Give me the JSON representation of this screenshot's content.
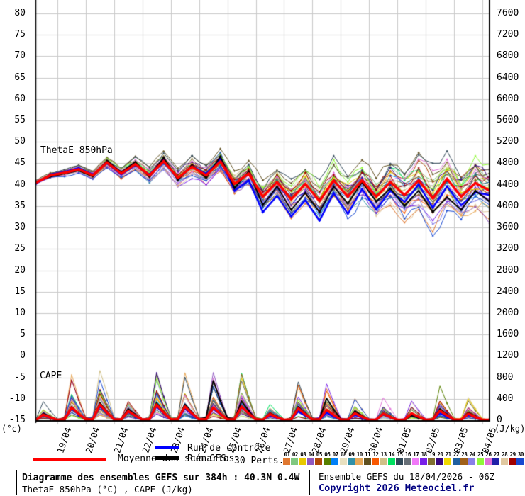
{
  "in_plot": {
    "thetae_label": "ThetaE 850hPa",
    "cape_label": "CAPE"
  },
  "axis_left": {
    "unit": "(°c)",
    "ticks": [
      "80",
      "75",
      "70",
      "65",
      "60",
      "55",
      "50",
      "45",
      "40",
      "35",
      "30",
      "25",
      "20",
      "15",
      "10",
      "5",
      "0",
      "-5",
      "-10",
      "-15"
    ]
  },
  "axis_right": {
    "unit": "(J/kg)",
    "ticks": [
      "7600",
      "7200",
      "6800",
      "6400",
      "6000",
      "5600",
      "5200",
      "4800",
      "4400",
      "4000",
      "3600",
      "3200",
      "2800",
      "2400",
      "2000",
      "1600",
      "1200",
      "800",
      "400",
      "0"
    ]
  },
  "legend": {
    "mean_label": "Moyenne des scénarios",
    "control_label": "Run de contrôle",
    "gfs_label": "Run GFS",
    "perts_label": "30 Perts.",
    "mean_color": "#ff0000",
    "control_color": "#0000ff",
    "gfs_color": "#000000"
  },
  "footer": {
    "title": "Diagramme des ensembles GEFS sur 384h : 40.3N 0.4W",
    "subtitle": "ThetaE 850hPa (°C) , CAPE (J/kg)",
    "run_info": "Ensemble GEFS du 18/04/2026 - 06Z",
    "copyright": "Copyright 2026 Meteociel.fr",
    "copyright_color": "#000080"
  },
  "chart_data": {
    "type": "line",
    "title": "Diagramme des ensembles GEFS sur 384h : 40.3N 0.4W",
    "subtitle": "ThetaE 850hPa (°C) , CAPE (J/kg)",
    "run": "Ensemble GEFS du 18/04/2026 - 06Z",
    "grid": true,
    "legend_position": "bottom",
    "x_axis": {
      "start": "18/04 06Z",
      "end": "04/05 06Z",
      "step_hours": 12,
      "total_hours": 384,
      "day_labels": [
        "19/04",
        "20/04",
        "21/04",
        "22/04",
        "23/04",
        "24/04",
        "25/04",
        "26/04",
        "27/04",
        "28/04",
        "29/04",
        "30/04",
        "01/05",
        "02/05",
        "03/05",
        "04/05"
      ]
    },
    "y_left": {
      "label": "ThetaE 850hPa (°c)",
      "min": -15,
      "max": 80,
      "step": 5
    },
    "y_right": {
      "label": "CAPE (J/kg)",
      "min": 0,
      "max": 7600,
      "step": 400
    },
    "thetae_series": {
      "mean": [
        40.5,
        42.2,
        42.8,
        43.6,
        42.2,
        45.2,
        42.6,
        44.8,
        42.2,
        45.5,
        41.6,
        44.2,
        42.2,
        45.4,
        40.2,
        42.6,
        37.2,
        40.6,
        36.6,
        40.2,
        36.2,
        41.0,
        37.2,
        41.0,
        37.2,
        40.6,
        37.6,
        41.0,
        36.8,
        41.4,
        37.2,
        40.4,
        38.6
      ],
      "control": [
        40.3,
        42.4,
        43.0,
        43.9,
        42.4,
        45.0,
        42.4,
        44.6,
        42.4,
        45.9,
        41.3,
        44.4,
        42.6,
        46.0,
        38.6,
        41.0,
        33.6,
        37.4,
        32.6,
        36.4,
        31.6,
        38.0,
        33.2,
        39.0,
        34.2,
        38.6,
        36.0,
        40.0,
        34.6,
        39.6,
        35.2,
        38.2,
        37.6
      ],
      "gfs": [
        40.6,
        41.9,
        42.6,
        43.3,
        41.9,
        45.6,
        42.9,
        45.3,
        41.9,
        46.3,
        41.1,
        44.6,
        41.6,
        46.6,
        39.2,
        43.1,
        35.2,
        39.6,
        34.1,
        38.1,
        33.6,
        39.6,
        35.6,
        40.6,
        36.1,
        39.1,
        35.1,
        38.6,
        33.6,
        37.1,
        34.1,
        38.6,
        36.1
      ]
    },
    "cape_daily_peaks": {
      "dates": [
        "18/04",
        "19/04",
        "20/04",
        "21/04",
        "22/04",
        "23/04",
        "24/04",
        "25/04",
        "26/04",
        "27/04",
        "28/04",
        "29/04",
        "30/04",
        "01/05",
        "02/05",
        "03/05",
        "04/05"
      ],
      "mean": [
        120,
        280,
        340,
        200,
        340,
        300,
        280,
        300,
        130,
        260,
        230,
        150,
        140,
        150,
        210,
        140,
        100
      ],
      "control": [
        100,
        250,
        300,
        180,
        300,
        260,
        250,
        280,
        100,
        200,
        160,
        110,
        120,
        130,
        150,
        110,
        80
      ],
      "gfs": [
        150,
        300,
        380,
        250,
        380,
        350,
        870,
        420,
        150,
        300,
        480,
        200,
        150,
        100,
        250,
        160,
        80
      ]
    },
    "members": {
      "count": 30,
      "labels": [
        "01",
        "02",
        "03",
        "04",
        "05",
        "06",
        "07",
        "08",
        "09",
        "10",
        "11",
        "12",
        "13",
        "14",
        "15",
        "16",
        "17",
        "18",
        "19",
        "20",
        "21",
        "22",
        "23",
        "24",
        "25",
        "26",
        "27",
        "28",
        "29",
        "30"
      ],
      "colors": [
        "#e07830",
        "#80c880",
        "#e8c800",
        "#9058c0",
        "#b04808",
        "#588000",
        "#0080f8",
        "#e8e0c0",
        "#3090a8",
        "#e8a858",
        "#605020",
        "#f85800",
        "#d0c088",
        "#00e060",
        "#304858",
        "#687078",
        "#f078f8",
        "#7820e8",
        "#807030",
        "#380880",
        "#f0d800",
        "#2060a0",
        "#a06018",
        "#8880e8",
        "#90f838",
        "#e070d8",
        "#2020a8",
        "#e0c8a0",
        "#a00000",
        "#1848d0"
      ]
    }
  },
  "render": {
    "seed": 1337
  }
}
